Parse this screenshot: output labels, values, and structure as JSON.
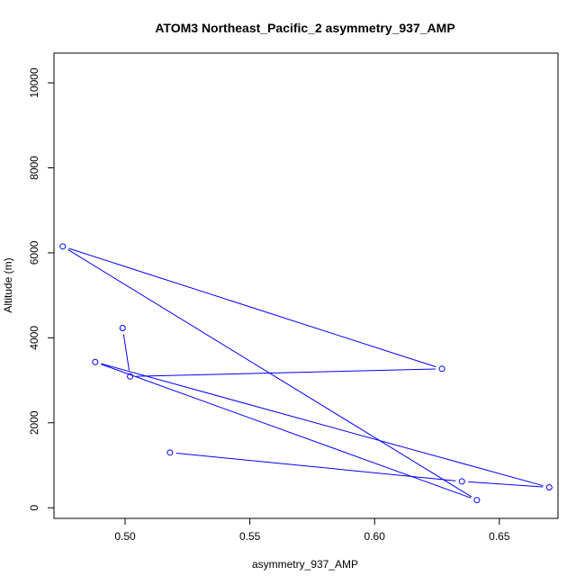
{
  "chart_data": {
    "type": "scatter",
    "title": "ATOM3 Northeast_Pacific_2 asymmetry_937_AMP",
    "xlabel": "asymmetry_937_AMP",
    "ylabel": "Altitude (m)",
    "xlim": [
      0.4715,
      0.6735
    ],
    "ylim": [
      -250,
      10700
    ],
    "x_ticks": [
      0.5,
      0.55,
      0.6,
      0.65
    ],
    "x_tick_labels": [
      "0.50",
      "0.55",
      "0.60",
      "0.65"
    ],
    "y_ticks": [
      0,
      2000,
      4000,
      6000,
      8000,
      10000
    ],
    "y_tick_labels": [
      "0",
      "2000",
      "4000",
      "6000",
      "8000",
      "10000"
    ],
    "grid": false,
    "series_color": "#0000ff",
    "series": [
      {
        "x": [
          0.518,
          0.635,
          0.67,
          0.488,
          0.641,
          0.475,
          0.627,
          0.502,
          0.499
        ],
        "y": [
          1300,
          620,
          480,
          3430,
          180,
          6150,
          3270,
          3090,
          4230
        ]
      }
    ]
  }
}
